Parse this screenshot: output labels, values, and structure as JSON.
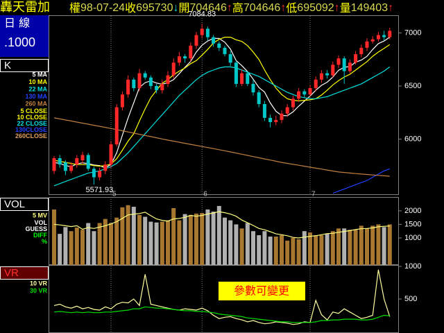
{
  "header": {
    "title": "轟天雷加",
    "label_color": "#ffff00",
    "value_color": "#d8d850",
    "fields": [
      {
        "label": "權",
        "value": "98-07-24"
      },
      {
        "label": "收",
        "value": "695730",
        "arrow": "↓",
        "arrow_color": "#00e0e0"
      },
      {
        "label": "開",
        "value": "704646",
        "arrow": "↑",
        "arrow_color": "#ff3030"
      },
      {
        "label": "高",
        "value": "704646",
        "arrow": "↑",
        "arrow_color": "#ff3030"
      },
      {
        "label": "低",
        "value": "695092",
        "arrow": "↑",
        "arrow_color": "#ff3030"
      },
      {
        "label": "量",
        "value": "149403",
        "arrow": "↑",
        "arrow_color": "#ff3030"
      }
    ]
  },
  "side": {
    "period": "日 線",
    "scale": ".1000"
  },
  "chart_data": [
    {
      "type": "candlestick",
      "panel_label": "K",
      "up_color": "#ff2828",
      "down_color": "#00c8c8",
      "categories": [
        null,
        null,
        null,
        null,
        null,
        null,
        null,
        null,
        null,
        null,
        "5",
        null,
        null,
        null,
        null,
        null,
        null,
        null,
        null,
        null,
        null,
        null,
        null,
        null,
        null,
        null,
        "6",
        null,
        null,
        null,
        null,
        null,
        null,
        null,
        null,
        null,
        null,
        null,
        null,
        null,
        null,
        null,
        null,
        null,
        null,
        "7",
        null,
        null,
        null,
        null,
        null,
        null,
        null,
        null,
        null,
        null,
        null,
        null,
        null,
        null
      ],
      "open": [
        5700,
        5820,
        5780,
        5700,
        5760,
        5800,
        5850,
        5720,
        5640,
        5700,
        5760,
        5950,
        6300,
        6420,
        6560,
        6480,
        6620,
        6580,
        6500,
        6460,
        6520,
        6600,
        6720,
        6780,
        6760,
        6880,
        6980,
        7040,
        6960,
        6900,
        6860,
        6800,
        6720,
        6520,
        6620,
        6520,
        6440,
        6330,
        6200,
        6160,
        6180,
        6240,
        6300,
        6380,
        6450,
        6420,
        6480,
        6560,
        6620,
        6600,
        6700,
        6760,
        6640,
        6720,
        6800,
        6860,
        6920,
        6940,
        6980,
        6960
      ],
      "high": [
        5840,
        5850,
        5800,
        5780,
        5850,
        5880,
        5870,
        5740,
        5730,
        5790,
        5980,
        6330,
        6450,
        6600,
        6580,
        6660,
        6640,
        6600,
        6520,
        6560,
        6640,
        6760,
        6820,
        6800,
        6910,
        7010,
        7084.83,
        7060,
        6980,
        6920,
        6880,
        6830,
        6740,
        6660,
        6640,
        6560,
        6460,
        6360,
        6230,
        6220,
        6270,
        6330,
        6410,
        6480,
        6470,
        6510,
        6590,
        6650,
        6650,
        6730,
        6790,
        6780,
        6750,
        6830,
        6890,
        6950,
        6970,
        7010,
        7020,
        7050
      ],
      "low": [
        5670,
        5730,
        5660,
        5680,
        5730,
        5770,
        5700,
        5571.93,
        5610,
        5670,
        5730,
        5930,
        6270,
        6390,
        6450,
        6450,
        6560,
        6470,
        6430,
        6430,
        6490,
        6570,
        6690,
        6720,
        6730,
        6850,
        6950,
        6930,
        6870,
        6830,
        6780,
        6690,
        6490,
        6500,
        6500,
        6410,
        6300,
        6170,
        6110,
        6130,
        6150,
        6210,
        6270,
        6350,
        6390,
        6400,
        6450,
        6530,
        6570,
        6580,
        6670,
        6520,
        6620,
        6700,
        6770,
        6830,
        6900,
        6920,
        6930,
        6940
      ],
      "close": [
        5820,
        5760,
        5700,
        5750,
        5820,
        5850,
        5720,
        5640,
        5700,
        5760,
        5950,
        6300,
        6420,
        6560,
        6480,
        6620,
        6580,
        6500,
        6460,
        6520,
        6600,
        6720,
        6780,
        6760,
        6880,
        6980,
        7040,
        6960,
        6900,
        6860,
        6800,
        6720,
        6520,
        6620,
        6520,
        6440,
        6330,
        6200,
        6160,
        6180,
        6240,
        6300,
        6380,
        6450,
        6420,
        6480,
        6560,
        6620,
        6600,
        6700,
        6760,
        6640,
        6720,
        6800,
        6860,
        6920,
        6940,
        6980,
        6960,
        7020
      ],
      "series": [
        {
          "name": "5 MA",
          "color": "#ffffff",
          "values": [
            5780,
            5770,
            5750,
            5740,
            5766,
            5776,
            5768,
            5756,
            5750,
            5728,
            5762,
            5870,
            6036,
            6198,
            6342,
            6486,
            6532,
            6548,
            6528,
            6516,
            6532,
            6560,
            6616,
            6676,
            6732,
            6820,
            6884,
            6924,
            6948,
            6948,
            6912,
            6848,
            6740,
            6692,
            6636,
            6564,
            6486,
            6442,
            6340,
            6262,
            6222,
            6220,
            6256,
            6310,
            6358,
            6406,
            6460,
            6506,
            6536,
            6584,
            6648,
            6676,
            6684,
            6724,
            6744,
            6780,
            6844,
            6900,
            6924,
            6960
          ]
        },
        {
          "name": "10 MA",
          "color": "#ffff00",
          "values": [
            5800,
            5790,
            5780,
            5770,
            5760,
            5760,
            5760,
            5750,
            5745,
            5750,
            5765,
            5815,
            5895,
            5980,
            6050,
            6170,
            6285,
            6390,
            6460,
            6525,
            6560,
            6605,
            6640,
            6670,
            6710,
            6740,
            6790,
            6845,
            6905,
            6940,
            6960,
            6960,
            6935,
            6920,
            6880,
            6820,
            6750,
            6650,
            6560,
            6480,
            6420,
            6380,
            6365,
            6360,
            6365,
            6370,
            6380,
            6415,
            6460,
            6510,
            6550,
            6585,
            6610,
            6650,
            6690,
            6730,
            6780,
            6820,
            6855,
            6890
          ]
        },
        {
          "name": "22 MA",
          "color": "#00e0e0",
          "values": [
            5560,
            5580,
            5600,
            5620,
            5640,
            5660,
            5680,
            5690,
            5700,
            5720,
            5740,
            5770,
            5820,
            5870,
            5930,
            5990,
            6050,
            6110,
            6170,
            6230,
            6290,
            6350,
            6410,
            6460,
            6510,
            6560,
            6600,
            6630,
            6650,
            6670,
            6680,
            6680,
            6670,
            6650,
            6630,
            6610,
            6590,
            6560,
            6530,
            6500,
            6470,
            6440,
            6420,
            6400,
            6390,
            6380,
            6380,
            6390,
            6400,
            6420,
            6440,
            6460,
            6480,
            6500,
            6520,
            6550,
            6580,
            6610,
            6640,
            6680
          ]
        },
        {
          "name": "130 MA",
          "color": "#2040ff",
          "values": [
            null,
            null,
            null,
            null,
            null,
            null,
            null,
            null,
            null,
            null,
            null,
            null,
            null,
            null,
            null,
            null,
            null,
            null,
            null,
            null,
            null,
            null,
            null,
            null,
            null,
            null,
            null,
            null,
            null,
            null,
            null,
            null,
            null,
            null,
            null,
            null,
            null,
            null,
            null,
            null,
            null,
            null,
            null,
            null,
            null,
            null,
            null,
            null,
            null,
            5490,
            5510,
            5530,
            5550,
            5570,
            5590,
            5610,
            5640,
            5670,
            5700,
            5720
          ]
        },
        {
          "name": "260 MA",
          "color": "#c08040",
          "values": [
            6200,
            6190,
            6180,
            6170,
            6160,
            6150,
            6140,
            6130,
            6120,
            6110,
            6100,
            6089,
            6078,
            6067,
            6056,
            6045,
            6034,
            6023,
            6012,
            6001,
            5990,
            5980,
            5970,
            5960,
            5950,
            5940,
            5930,
            5920,
            5910,
            5900,
            5890,
            5879,
            5868,
            5857,
            5846,
            5835,
            5824,
            5813,
            5802,
            5791,
            5780,
            5771,
            5762,
            5753,
            5744,
            5735,
            5726,
            5717,
            5708,
            5699,
            5690,
            5685,
            5680,
            5675,
            5670,
            5666,
            5662,
            5658,
            5654,
            5650
          ]
        }
      ],
      "legend_extra": [
        {
          "name": "5 CLOSE",
          "color": "#ffff00"
        },
        {
          "name": "10 CLOSE",
          "color": "#ffff00"
        },
        {
          "name": "22 CLOSE",
          "color": "#00e0e0"
        },
        {
          "name": "130CLOSE",
          "color": "#2040ff"
        },
        {
          "name": "260CLOSE",
          "color": "#e0a060"
        }
      ],
      "ylim": [
        5480,
        7160
      ],
      "yticks": [
        6000,
        6500,
        7000
      ]
    },
    {
      "type": "bar",
      "panel_label": "VOL",
      "up_color": "#a87830",
      "down_color": "#b0b0b0",
      "values": [
        2050,
        1150,
        1400,
        1250,
        1380,
        1300,
        1550,
        1250,
        1550,
        1700,
        1550,
        1750,
        2130,
        2210,
        2150,
        1850,
        1780,
        1600,
        1570,
        1600,
        1650,
        2100,
        1650,
        1880,
        1850,
        1900,
        1920,
        2050,
        1970,
        2180,
        1750,
        1650,
        1500,
        1350,
        1550,
        1250,
        1100,
        1250,
        1050,
        1050,
        1100,
        900,
        1000,
        950,
        1250,
        1200,
        1100,
        1100,
        1150,
        1250,
        1350,
        1350,
        1300,
        1300,
        1450,
        1350,
        1450,
        1500,
        1400,
        1500
      ],
      "series": [
        {
          "name": "5 MV",
          "color": "#ffff80",
          "values": [
            1500,
            1480,
            1450,
            1420,
            1450,
            1320,
            1380,
            1350,
            1400,
            1450,
            1520,
            1600,
            1720,
            1850,
            1880,
            1900,
            1950,
            1820,
            1700,
            1650,
            1620,
            1700,
            1720,
            1760,
            1830,
            1800,
            1830,
            1880,
            1920,
            1970,
            1930,
            1880,
            1800,
            1660,
            1560,
            1460,
            1350,
            1300,
            1230,
            1150,
            1120,
            1080,
            1020,
            1000,
            1030,
            1060,
            1080,
            1120,
            1160,
            1170,
            1210,
            1240,
            1270,
            1310,
            1340,
            1350,
            1370,
            1410,
            1430,
            1440
          ]
        }
      ],
      "legend_extra": [
        {
          "name": "VOL",
          "color": "#ffffff"
        },
        {
          "name": "GUESS",
          "color": "#ffffff"
        },
        {
          "name": "DIFF",
          "color": "#00ff00"
        },
        {
          "name": "%",
          "color": "#00ff00"
        }
      ],
      "ylim": [
        0,
        2510
      ],
      "yticks": [
        1000,
        1500,
        2000
      ]
    },
    {
      "type": "line",
      "panel_label": "VR",
      "note": "參數可變更",
      "series": [
        {
          "name": "10 VR",
          "color": "#ffffa0",
          "values": [
            400,
            420,
            380,
            360,
            390,
            350,
            370,
            340,
            330,
            380,
            350,
            420,
            450,
            440,
            500,
            400,
            880,
            420,
            400,
            380,
            360,
            340,
            330,
            350,
            340,
            330,
            360,
            320,
            250,
            200,
            220,
            230,
            200,
            180,
            150,
            170,
            140,
            120,
            130,
            150,
            140,
            130,
            110,
            120,
            150,
            140,
            480,
            260,
            180,
            300,
            280,
            350,
            300,
            250,
            200,
            220,
            250,
            950,
            500,
            230
          ]
        },
        {
          "name": "30 VR",
          "color": "#00e000",
          "values": [
            300,
            310,
            300,
            290,
            300,
            290,
            300,
            290,
            290,
            300,
            300,
            310,
            320,
            330,
            350,
            350,
            380,
            370,
            360,
            360,
            350,
            340,
            330,
            320,
            320,
            310,
            310,
            300,
            290,
            270,
            260,
            250,
            240,
            230,
            210,
            200,
            190,
            180,
            170,
            160,
            150,
            150,
            140,
            140,
            140,
            140,
            150,
            170,
            170,
            180,
            180,
            190,
            190,
            190,
            180,
            180,
            190,
            220,
            250,
            240
          ]
        }
      ],
      "ylim": [
        0,
        1000
      ],
      "yticks": [
        500,
        1000
      ]
    }
  ]
}
